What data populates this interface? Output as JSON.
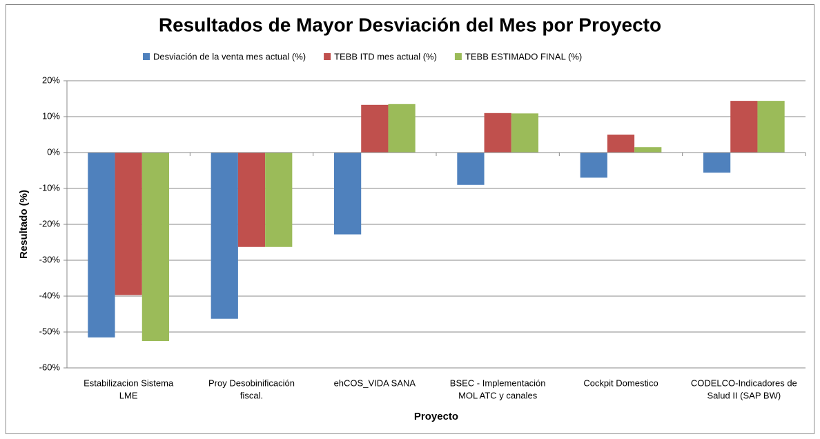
{
  "chart_data": {
    "type": "bar",
    "title": "Resultados de Mayor Desviación del Mes por Proyecto",
    "x_label": "Proyecto",
    "y_label": "Resultado (%)",
    "categories": [
      [
        "Estabilizacion Sistema",
        "LME"
      ],
      [
        "Proy Desobinificación",
        "fiscal."
      ],
      [
        "ehCOS_VIDA SANA"
      ],
      [
        "BSEC - Implementación",
        "MOL ATC y canales"
      ],
      [
        "Cockpit Domestico"
      ],
      [
        "CODELCO-Indicadores de",
        "Salud II (SAP BW)"
      ]
    ],
    "series": [
      {
        "name": "Desviación de la venta  mes actual (%)",
        "color": "#4f81bd",
        "values": [
          -51.5,
          -46.3,
          -22.8,
          -9,
          -7,
          -5.6
        ]
      },
      {
        "name": "TEBB ITD mes actual (%)",
        "color": "#c0504d",
        "values": [
          -39.7,
          -26.3,
          13.3,
          11,
          5,
          14.4
        ]
      },
      {
        "name": "TEBB ESTIMADO FINAL (%)",
        "color": "#9bbb59",
        "values": [
          -52.5,
          -26.3,
          13.5,
          10.9,
          1.5,
          14.4
        ]
      }
    ],
    "ylim": [
      -60,
      20
    ],
    "yticks": [
      {
        "value": -60,
        "label": "-60%"
      },
      {
        "value": -50,
        "label": "-50%"
      },
      {
        "value": -40,
        "label": "-40%"
      },
      {
        "value": -30,
        "label": "-30%"
      },
      {
        "value": -20,
        "label": "-20%"
      },
      {
        "value": -10,
        "label": "-10%"
      },
      {
        "value": 0,
        "label": "0%"
      },
      {
        "value": 10,
        "label": "10%"
      },
      {
        "value": 20,
        "label": "20%"
      }
    ],
    "grid": true,
    "legend": "top"
  }
}
